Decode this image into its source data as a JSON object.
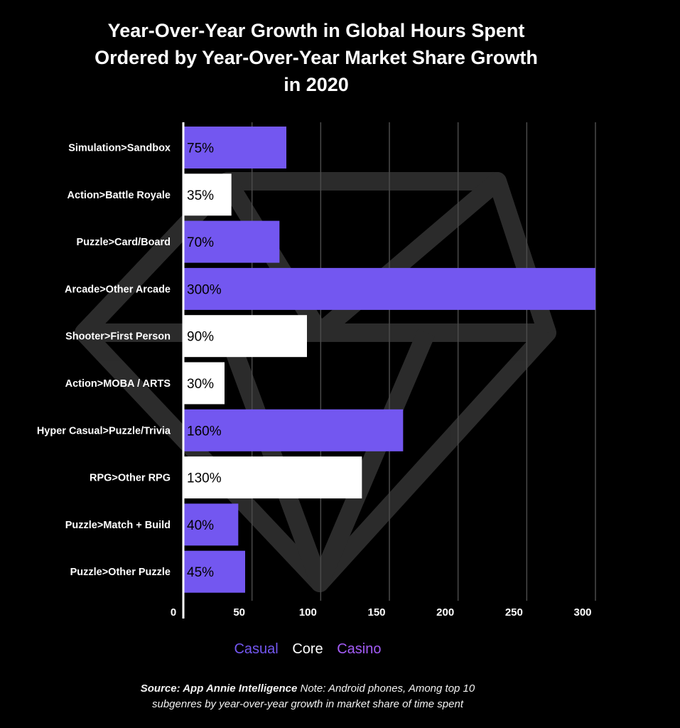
{
  "title_lines": [
    "Year-Over-Year Growth in Global Hours Spent",
    "Ordered by Year-Over-Year Market Share Growth",
    "in 2020"
  ],
  "colors": {
    "background": "#000000",
    "casual": "#7357f0",
    "core": "#ffffff",
    "casino": "#a35cf6",
    "gridline": "#4a4a4a",
    "axis": "#ffffff"
  },
  "legend": {
    "casual": "Casual",
    "core": "Core",
    "casino": "Casino"
  },
  "footnote": {
    "source": "Source: App Annie Intelligence",
    "note_line1": " Note: Android phones, Among top 10",
    "note_line2": "subgenres by year-over-year growth in market share of time spent"
  },
  "chart_data": {
    "type": "bar",
    "orientation": "horizontal",
    "categories": [
      "Simulation>Sandbox",
      "Action>Battle Royale",
      "Puzzle>Card/Board",
      "Arcade>Other Arcade",
      "Shooter>First Person",
      "Action>MOBA / ARTS",
      "Hyper Casual>Puzzle/Trivia",
      "RPG>Other RPG",
      "Puzzle>Match + Build",
      "Puzzle>Other Puzzle"
    ],
    "values": [
      75,
      35,
      70,
      300,
      90,
      30,
      160,
      130,
      40,
      45
    ],
    "value_labels": [
      "75%",
      "35%",
      "70%",
      "300%",
      "90%",
      "30%",
      "160%",
      "130%",
      "40%",
      "45%"
    ],
    "bar_groups": [
      "casual",
      "core",
      "casual",
      "casual",
      "core",
      "core",
      "casual",
      "core",
      "casual",
      "casual"
    ],
    "xticks": [
      0,
      50,
      100,
      150,
      200,
      250,
      300
    ],
    "xtick_labels": [
      "0",
      "50",
      "100",
      "150",
      "200",
      "250",
      "300"
    ],
    "xlim": [
      0,
      300
    ],
    "grid": true,
    "legend_position": "bottom"
  }
}
